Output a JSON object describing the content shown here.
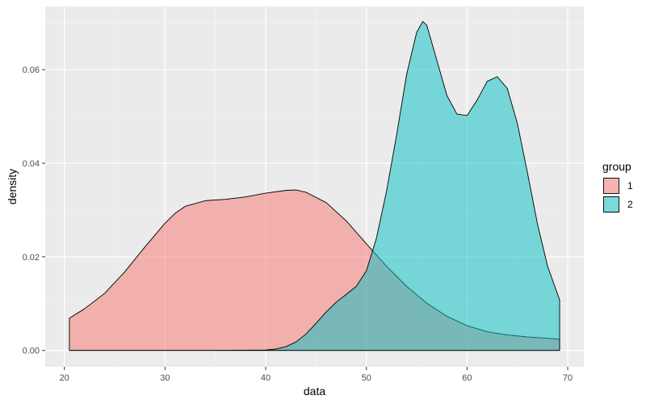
{
  "chart_data": {
    "type": "area",
    "xlabel": "data",
    "ylabel": "density",
    "xlim": [
      18.1,
      71.6
    ],
    "ylim": [
      -0.0035,
      0.0735
    ],
    "x_ticks": [
      20,
      30,
      40,
      50,
      60,
      70
    ],
    "y_ticks": [
      0.0,
      0.02,
      0.04,
      0.06
    ],
    "y_tick_labels": [
      "0.00",
      "0.02",
      "0.04",
      "0.06"
    ],
    "grid": true,
    "legend": {
      "title": "group",
      "position": "right"
    },
    "series": [
      {
        "name": "1",
        "color": "#F8766D",
        "x": [
          20.5,
          22,
          24,
          26,
          28,
          30,
          31,
          32,
          34,
          36,
          38,
          40,
          42,
          43,
          44,
          46,
          48,
          50,
          52,
          54,
          56,
          58,
          60,
          62,
          64,
          66,
          68,
          69.2
        ],
        "y": [
          0.0069,
          0.0089,
          0.0122,
          0.0168,
          0.0221,
          0.0272,
          0.0293,
          0.0308,
          0.032,
          0.0323,
          0.0328,
          0.0336,
          0.0342,
          0.0343,
          0.0338,
          0.0316,
          0.0277,
          0.0228,
          0.018,
          0.0137,
          0.0101,
          0.0073,
          0.0053,
          0.004,
          0.0033,
          0.0029,
          0.0026,
          0.0024
        ]
      },
      {
        "name": "2",
        "color": "#00BFC4",
        "x": [
          20.5,
          30,
          35,
          40,
          41,
          42,
          43,
          44,
          45,
          46,
          47,
          48,
          49,
          50,
          51,
          52,
          53,
          54,
          55,
          55.6,
          56,
          57,
          58,
          59,
          60,
          61,
          62,
          63,
          64,
          65,
          66,
          67,
          68,
          69.2
        ],
        "y": [
          0.0,
          0.0,
          0.0,
          0.0001,
          0.0003,
          0.0008,
          0.0018,
          0.0035,
          0.0058,
          0.0082,
          0.0103,
          0.012,
          0.0137,
          0.017,
          0.024,
          0.034,
          0.046,
          0.059,
          0.068,
          0.0703,
          0.0695,
          0.062,
          0.0545,
          0.0505,
          0.0502,
          0.0535,
          0.0575,
          0.0585,
          0.056,
          0.0485,
          0.038,
          0.027,
          0.018,
          0.0108
        ]
      }
    ]
  }
}
